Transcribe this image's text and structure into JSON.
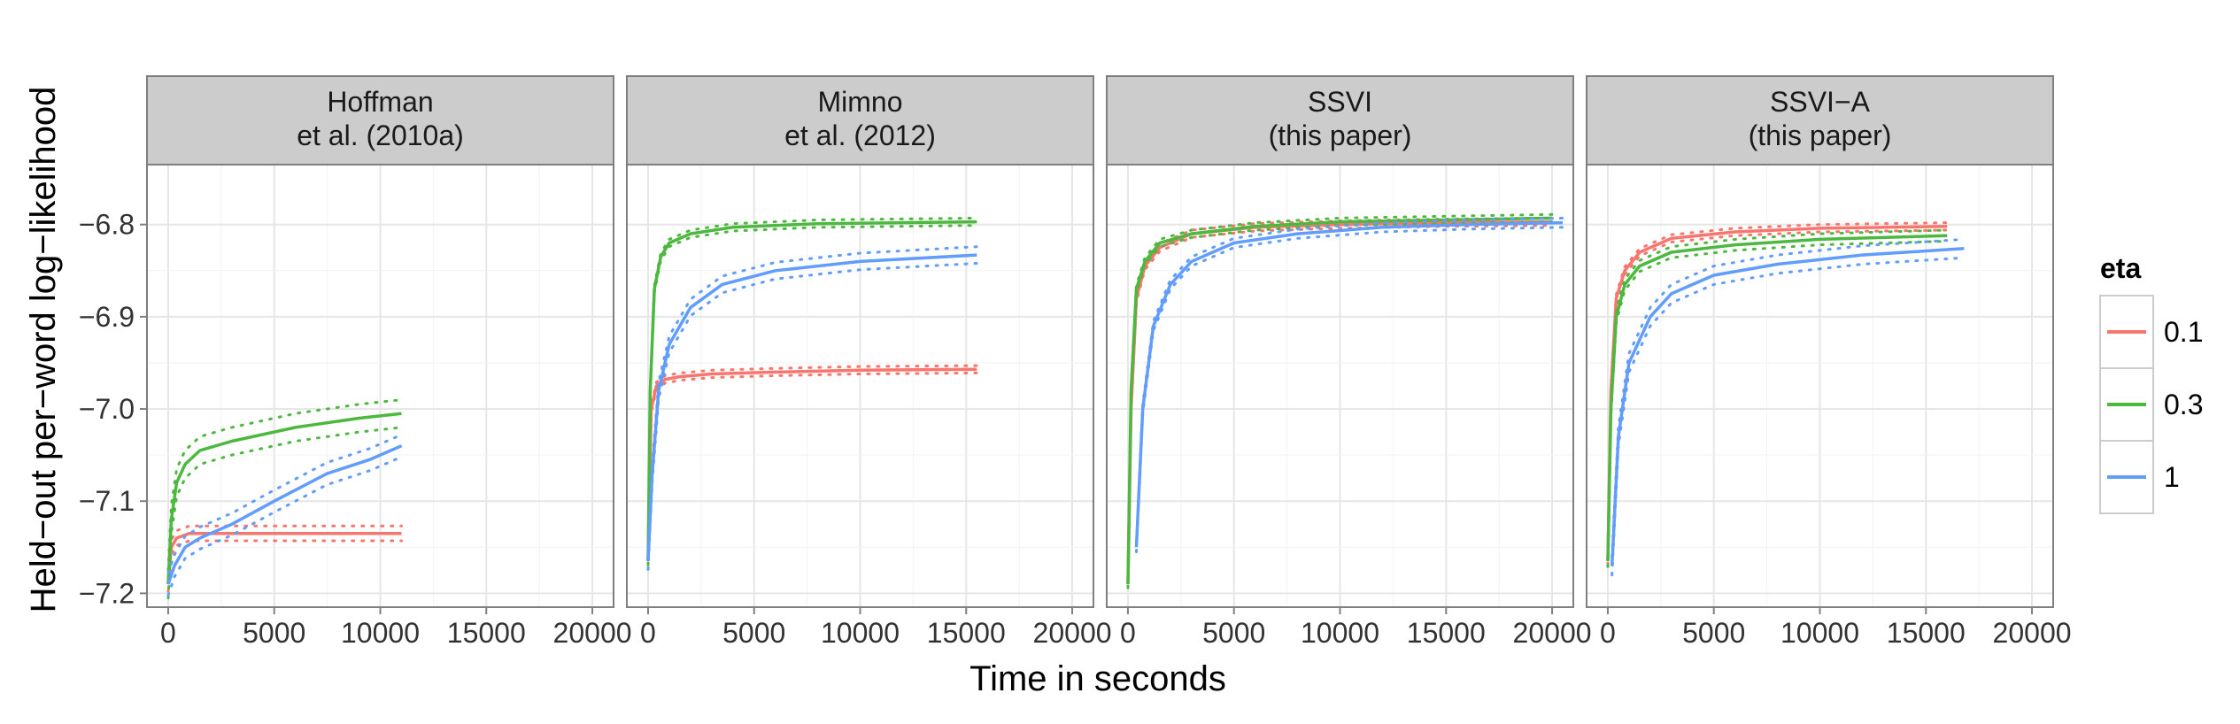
{
  "chart_data": {
    "type": "line",
    "xlabel": "Time in seconds",
    "ylabel": "Held−out per−word log−likelihood",
    "xlim": [
      -1000,
      21000
    ],
    "ylim": [
      -7.215,
      -6.735
    ],
    "x_ticks": [
      0,
      5000,
      10000,
      15000,
      20000
    ],
    "x_tick_labels": [
      "0",
      "5000",
      "10000",
      "15000",
      "20000"
    ],
    "y_ticks": [
      -7.2,
      -7.1,
      -7.0,
      -6.9,
      -6.8
    ],
    "y_tick_labels": [
      "−7.2",
      "−7.1",
      "−7.0",
      "−6.9",
      "−6.8"
    ],
    "grid": true,
    "legend": {
      "title": "eta",
      "position": "right",
      "entries": [
        {
          "label": "0.1",
          "color": "#F8766D"
        },
        {
          "label": "0.3",
          "color": "#4DB840"
        },
        {
          "label": "1",
          "color": "#619CFF"
        }
      ]
    },
    "panels": [
      {
        "title_lines": [
          "Hoffman",
          "et al. (2010a)"
        ],
        "series": [
          {
            "name": "0.1",
            "color": "#F8766D",
            "x": [
              0,
              150,
              400,
              1000,
              3000,
              6000,
              11000
            ],
            "y": [
              -7.19,
              -7.15,
              -7.14,
              -7.135,
              -7.135,
              -7.135,
              -7.135
            ],
            "band": 0.008
          },
          {
            "name": "0.3",
            "color": "#4DB840",
            "x": [
              0,
              150,
              400,
              800,
              1500,
              3000,
              6000,
              9000,
              11000
            ],
            "y": [
              -7.19,
              -7.12,
              -7.08,
              -7.06,
              -7.045,
              -7.035,
              -7.02,
              -7.01,
              -7.005
            ],
            "band": 0.015
          },
          {
            "name": "1",
            "color": "#619CFF",
            "x": [
              0,
              300,
              800,
              1500,
              3000,
              5000,
              7500,
              9500,
              11000
            ],
            "y": [
              -7.19,
              -7.17,
              -7.15,
              -7.14,
              -7.125,
              -7.1,
              -7.07,
              -7.055,
              -7.04
            ],
            "band": 0.012
          }
        ]
      },
      {
        "title_lines": [
          "Mimno",
          "et al. (2012)"
        ],
        "series": [
          {
            "name": "0.1",
            "color": "#F8766D",
            "x": [
              0,
              150,
              400,
              800,
              1500,
              3000,
              6000,
              10000,
              15500
            ],
            "y": [
              -7.165,
              -7.0,
              -6.975,
              -6.968,
              -6.965,
              -6.962,
              -6.96,
              -6.958,
              -6.957
            ],
            "band": 0.004
          },
          {
            "name": "0.3",
            "color": "#4DB840",
            "x": [
              0,
              100,
              300,
              600,
              1000,
              2000,
              4000,
              8000,
              15500
            ],
            "y": [
              -7.165,
              -6.98,
              -6.87,
              -6.835,
              -6.82,
              -6.81,
              -6.803,
              -6.799,
              -6.797
            ],
            "band": 0.004
          },
          {
            "name": "1",
            "color": "#619CFF",
            "x": [
              0,
              200,
              500,
              1000,
              2000,
              3500,
              6000,
              10000,
              15500
            ],
            "y": [
              -7.165,
              -7.07,
              -6.98,
              -6.93,
              -6.89,
              -6.865,
              -6.85,
              -6.84,
              -6.833
            ],
            "band": 0.009
          }
        ]
      },
      {
        "title_lines": [
          "SSVI",
          "(this paper)"
        ],
        "series": [
          {
            "name": "0.1",
            "color": "#F8766D",
            "x": [
              0,
              150,
              400,
              800,
              1500,
              3000,
              6000,
              10000,
              15000,
              20000
            ],
            "y": [
              -7.19,
              -7.0,
              -6.88,
              -6.845,
              -6.825,
              -6.81,
              -6.803,
              -6.8,
              -6.798,
              -6.797
            ],
            "band": 0.004
          },
          {
            "name": "0.3",
            "color": "#4DB840",
            "x": [
              0,
              150,
              400,
              800,
              1500,
              3000,
              6000,
              10000,
              15000,
              20000
            ],
            "y": [
              -7.19,
              -6.98,
              -6.87,
              -6.84,
              -6.82,
              -6.81,
              -6.802,
              -6.797,
              -6.795,
              -6.793
            ],
            "band": 0.004
          },
          {
            "name": "1",
            "color": "#619CFF",
            "x": [
              400,
              700,
              1200,
              2000,
              3000,
              5000,
              8000,
              12000,
              16000,
              20500
            ],
            "y": [
              -7.15,
              -7.0,
              -6.91,
              -6.865,
              -6.84,
              -6.82,
              -6.81,
              -6.803,
              -6.8,
              -6.798
            ],
            "band": 0.005
          }
        ]
      },
      {
        "title_lines": [
          "SSVI−A",
          "(this paper)"
        ],
        "series": [
          {
            "name": "0.1",
            "color": "#F8766D",
            "x": [
              0,
              150,
              400,
              800,
              1500,
              3000,
              6000,
              10000,
              16000
            ],
            "y": [
              -7.165,
              -6.98,
              -6.88,
              -6.85,
              -6.83,
              -6.815,
              -6.808,
              -6.804,
              -6.802
            ],
            "band": 0.004
          },
          {
            "name": "0.3",
            "color": "#4DB840",
            "x": [
              0,
              150,
              400,
              800,
              1500,
              3000,
              6000,
              10000,
              16000
            ],
            "y": [
              -7.165,
              -7.0,
              -6.9,
              -6.865,
              -6.845,
              -6.83,
              -6.822,
              -6.816,
              -6.812
            ],
            "band": 0.006
          },
          {
            "name": "1",
            "color": "#619CFF",
            "x": [
              200,
              500,
              1000,
              2000,
              3000,
              5000,
              8000,
              12000,
              16800
            ],
            "y": [
              -7.17,
              -7.03,
              -6.95,
              -6.9,
              -6.875,
              -6.855,
              -6.843,
              -6.833,
              -6.826
            ],
            "band": 0.01
          }
        ]
      }
    ]
  }
}
